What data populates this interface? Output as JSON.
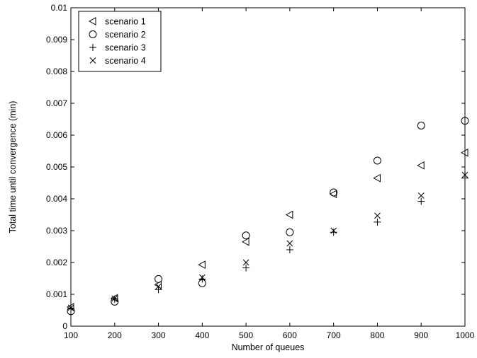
{
  "chart_data": {
    "type": "scatter",
    "title": "",
    "xlabel": "Number of queues",
    "ylabel": "Total time until convergence (min)",
    "xlim": [
      100,
      1000
    ],
    "ylim": [
      0,
      0.01
    ],
    "x_ticks": [
      "100",
      "200",
      "300",
      "400",
      "500",
      "600",
      "700",
      "800",
      "900",
      "1000"
    ],
    "y_ticks": [
      "0",
      "0.001",
      "0.002",
      "0.003",
      "0.004",
      "0.005",
      "0.006",
      "0.007",
      "0.008",
      "0.009",
      "0.01"
    ],
    "grid": false,
    "legend_position": "top-left",
    "series": [
      {
        "name": "scenario 1",
        "marker": "triangle-left",
        "x": [
          100,
          200,
          300,
          400,
          500,
          600,
          700,
          800,
          900,
          1000
        ],
        "y": [
          0.0006,
          0.00088,
          0.0013,
          0.00193,
          0.00265,
          0.0035,
          0.00415,
          0.00465,
          0.00505,
          0.00545
        ]
      },
      {
        "name": "scenario 2",
        "marker": "circle",
        "x": [
          100,
          200,
          300,
          400,
          500,
          600,
          700,
          800,
          900,
          1000
        ],
        "y": [
          0.00047,
          0.00077,
          0.00148,
          0.00135,
          0.00285,
          0.00295,
          0.0042,
          0.0052,
          0.0063,
          0.00645
        ]
      },
      {
        "name": "scenario 3",
        "marker": "plus",
        "x": [
          100,
          200,
          300,
          400,
          500,
          600,
          700,
          800,
          900,
          1000
        ],
        "y": [
          0.00055,
          0.00085,
          0.00115,
          0.00148,
          0.00183,
          0.0024,
          0.00295,
          0.00327,
          0.00392,
          0.00465
        ]
      },
      {
        "name": "scenario 4",
        "marker": "x",
        "x": [
          100,
          200,
          300,
          400,
          500,
          600,
          700,
          800,
          900,
          1000
        ],
        "y": [
          0.00058,
          0.00087,
          0.00125,
          0.00153,
          0.002,
          0.0026,
          0.003,
          0.00347,
          0.0041,
          0.00475
        ]
      }
    ]
  }
}
